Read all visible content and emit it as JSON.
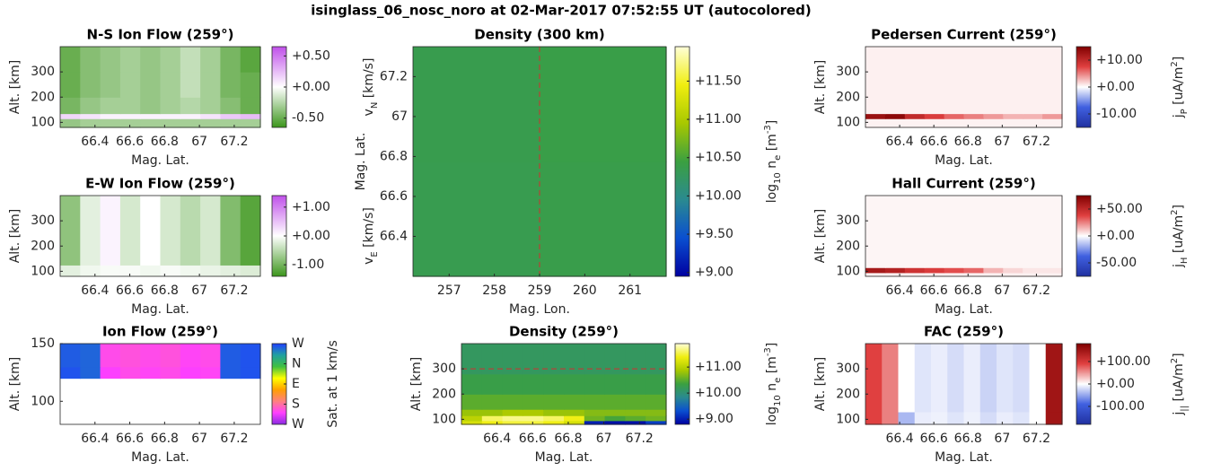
{
  "figure_title": "isinglass_06_nosc_noro at 02-Mar-2017 07:52:55 UT (autocolored)",
  "chart_data": [
    {
      "type": "heatmap",
      "title": "N-S Ion Flow (259°)",
      "xlabel": "Mag. Lat.",
      "ylabel": "Alt. [km]",
      "xlim": [
        66.2,
        67.35
      ],
      "ylim": [
        80,
        400
      ],
      "xticks": [
        66.4,
        66.6,
        66.8,
        67,
        67.2
      ],
      "yticks": [
        100,
        200,
        300
      ],
      "yedges": [
        80,
        115,
        135,
        200,
        300,
        400
      ],
      "z": [
        [
          -0.35,
          -0.3,
          -0.3,
          -0.3,
          -0.3,
          -0.3,
          -0.3,
          -0.3,
          -0.3,
          -0.3
        ],
        [
          0.15,
          0.1,
          0.05,
          0.05,
          0.05,
          0.05,
          0.05,
          0.1,
          0.2,
          0.25
        ],
        [
          -0.45,
          -0.35,
          -0.3,
          -0.3,
          -0.35,
          -0.3,
          -0.25,
          -0.3,
          -0.4,
          -0.5
        ],
        [
          -0.5,
          -0.4,
          -0.35,
          -0.3,
          -0.35,
          -0.3,
          -0.2,
          -0.3,
          -0.45,
          -0.5
        ],
        [
          -0.5,
          -0.4,
          -0.35,
          -0.3,
          -0.35,
          -0.3,
          -0.2,
          -0.3,
          -0.45,
          -0.55
        ]
      ],
      "clim": [
        -0.65,
        0.65
      ],
      "colormap": [
        "#3c961c",
        "#ffffff",
        "#c050ea"
      ],
      "cticks": [
        {
          "value": 0.5,
          "label": "+0.50"
        },
        {
          "value": 0,
          "label": "+0.00"
        },
        {
          "value": -0.5,
          "label": "-0.50"
        }
      ],
      "colorbar_label": [
        {
          "text": "v"
        },
        {
          "text": "N",
          "shift": "sub"
        },
        {
          "text": " [km/s]"
        }
      ]
    },
    {
      "type": "heatmap",
      "title": "E-W Ion Flow (259°)",
      "xlabel": "Mag. Lat.",
      "ylabel": "Alt. [km]",
      "xlim": [
        66.2,
        67.35
      ],
      "ylim": [
        80,
        400
      ],
      "xticks": [
        66.4,
        66.6,
        66.8,
        67,
        67.2
      ],
      "yticks": [
        100,
        200,
        300
      ],
      "yedges": [
        80,
        125,
        400
      ],
      "z": [
        [
          -0.2,
          -0.1,
          -0.05,
          -0.05,
          -0.1,
          -0.05,
          -0.1,
          -0.15,
          -0.2,
          -0.25
        ],
        [
          -0.8,
          -0.2,
          0.1,
          -0.3,
          0.0,
          -0.3,
          -0.5,
          -0.3,
          -0.9,
          -1.2
        ]
      ],
      "clim": [
        -1.4,
        1.4
      ],
      "colormap": [
        "#3c961c",
        "#ffffff",
        "#c050ea"
      ],
      "cticks": [
        {
          "value": 1,
          "label": "+1.00"
        },
        {
          "value": 0,
          "label": "+0.00"
        },
        {
          "value": -1,
          "label": "-1.00"
        }
      ],
      "colorbar_label": [
        {
          "text": "v"
        },
        {
          "text": "E",
          "shift": "sub"
        },
        {
          "text": " [km/s]"
        }
      ]
    },
    {
      "type": "heatmap",
      "title": "Ion Flow (259°)",
      "xlabel": "Mag. Lat.",
      "ylabel": "Alt. [km]",
      "xlim": [
        66.2,
        67.35
      ],
      "ylim": [
        80,
        150
      ],
      "xticks": [
        66.4,
        66.6,
        66.8,
        67,
        67.2
      ],
      "yticks": [
        100,
        150
      ],
      "yedges": [
        80,
        110,
        120,
        130,
        150
      ],
      "z": [
        [
          null,
          null,
          null,
          null,
          null,
          null,
          null,
          null,
          null,
          null
        ],
        [
          null,
          null,
          null,
          null,
          null,
          null,
          null,
          null,
          null,
          null
        ],
        [
          350,
          340,
          50,
          60,
          55,
          60,
          50,
          55,
          345,
          350
        ],
        [
          345,
          340,
          60,
          65,
          60,
          65,
          55,
          60,
          345,
          350
        ]
      ],
      "clim": [
        0,
        360
      ],
      "colormap": [
        "#8a2be2",
        "#ff40ff",
        "#ff8080",
        "#ffa000",
        "#ffff00",
        "#40c040",
        "#20a0a0",
        "#2040ff"
      ],
      "cticks": [
        {
          "value": 0,
          "label": "W"
        },
        {
          "value": 90,
          "label": "S"
        },
        {
          "value": 180,
          "label": "E"
        },
        {
          "value": 270,
          "label": "N"
        },
        {
          "value": 360,
          "label": "W"
        }
      ],
      "colorbar_label": [
        {
          "text": "Sat. at 1 km/s"
        }
      ]
    },
    {
      "type": "heatmap",
      "title": "Density (300 km)",
      "xlabel": "Mag. Lon.",
      "ylabel": "Mag. Lat.",
      "xlim": [
        256.2,
        261.8
      ],
      "ylim": [
        66.2,
        67.35
      ],
      "xticks": [
        257,
        258,
        259,
        260,
        261
      ],
      "yticks": [
        66.4,
        66.6,
        66.8,
        67,
        67.2
      ],
      "z": [
        [
          10.35,
          10.38
        ],
        [
          10.36,
          10.4
        ]
      ],
      "vline": 259,
      "clim": [
        8.95,
        11.95
      ],
      "colormap": [
        "#0000a0",
        "#0a4fd0",
        "#2a8a90",
        "#3ba040",
        "#a8c800",
        "#f0ee10",
        "#ffffd8"
      ],
      "cticks": [
        {
          "value": 11.5,
          "label": "+11.50"
        },
        {
          "value": 11,
          "label": "+11.00"
        },
        {
          "value": 10.5,
          "label": "+10.50"
        },
        {
          "value": 10,
          "label": "+10.00"
        },
        {
          "value": 9.5,
          "label": "+9.50"
        },
        {
          "value": 9,
          "label": "+9.00"
        }
      ],
      "colorbar_label": [
        {
          "text": "log"
        },
        {
          "text": "10",
          "shift": "sub"
        },
        {
          "text": " n"
        },
        {
          "text": "e",
          "shift": "sub"
        },
        {
          "text": " [m"
        },
        {
          "text": "-3",
          "shift": "super"
        },
        {
          "text": "]"
        }
      ]
    },
    {
      "type": "heatmap",
      "title": "Density (259°)",
      "xlabel": "Mag. Lat.",
      "ylabel": "Alt. [km]",
      "xlim": [
        66.2,
        67.35
      ],
      "ylim": [
        80,
        400
      ],
      "xticks": [
        66.4,
        66.6,
        66.8,
        67,
        67.2
      ],
      "yticks": [
        100,
        200,
        300
      ],
      "yedges": [
        80,
        95,
        115,
        140,
        200,
        280,
        400
      ],
      "hline": 300,
      "z": [
        [
          11.2,
          11.4,
          11.5,
          11.5,
          11.4,
          11.2,
          9.0,
          8.9,
          8.9,
          9.2
        ],
        [
          11.0,
          11.6,
          11.7,
          11.7,
          11.6,
          11.4,
          10.6,
          10.4,
          10.5,
          10.6
        ],
        [
          10.8,
          10.8,
          10.9,
          10.9,
          10.8,
          10.8,
          10.7,
          10.7,
          10.7,
          10.7
        ],
        [
          10.5,
          10.5,
          10.5,
          10.5,
          10.5,
          10.5,
          10.5,
          10.5,
          10.5,
          10.5
        ],
        [
          10.3,
          10.3,
          10.3,
          10.3,
          10.3,
          10.3,
          10.3,
          10.3,
          10.3,
          10.3
        ],
        [
          10.15,
          10.15,
          10.15,
          10.15,
          10.15,
          10.15,
          10.15,
          10.15,
          10.15,
          10.15
        ]
      ],
      "clim": [
        8.8,
        11.9
      ],
      "colormap": [
        "#0000a0",
        "#0a4fd0",
        "#2a8a90",
        "#3ba040",
        "#a8c800",
        "#f0ee10",
        "#ffffd8"
      ],
      "cticks": [
        {
          "value": 11,
          "label": "+11.00"
        },
        {
          "value": 10,
          "label": "+10.00"
        },
        {
          "value": 9,
          "label": "+9.00"
        }
      ],
      "colorbar_label": [
        {
          "text": "log"
        },
        {
          "text": "10",
          "shift": "sub"
        },
        {
          "text": " n"
        },
        {
          "text": "e",
          "shift": "sub"
        },
        {
          "text": " [m"
        },
        {
          "text": "-3",
          "shift": "super"
        },
        {
          "text": "]"
        }
      ]
    },
    {
      "type": "heatmap",
      "title": "Pedersen Current (259°)",
      "xlabel": "Mag. Lat.",
      "ylabel": "Alt. [km]",
      "xlim": [
        66.2,
        67.35
      ],
      "ylim": [
        80,
        400
      ],
      "xticks": [
        66.4,
        66.6,
        66.8,
        67,
        67.2
      ],
      "yticks": [
        100,
        200,
        300
      ],
      "yedges": [
        80,
        115,
        135,
        400
      ],
      "z": [
        [
          0.5,
          0.5,
          0.5,
          0.5,
          0.5,
          0.5,
          0.5,
          0.5,
          0.5,
          0.5
        ],
        [
          13,
          14,
          10,
          8,
          6,
          5,
          4,
          3,
          3,
          4
        ],
        [
          0.6,
          0.6,
          0.6,
          0.6,
          0.6,
          0.6,
          0.6,
          0.6,
          0.6,
          0.6
        ]
      ],
      "clim": [
        -15,
        15
      ],
      "colormap": [
        "#2030a0",
        "#4060e0",
        "#ffffff",
        "#e04040",
        "#800000"
      ],
      "cticks": [
        {
          "value": 10,
          "label": "+10.00"
        },
        {
          "value": 0,
          "label": "+0.00"
        },
        {
          "value": -10,
          "label": "-10.00"
        }
      ],
      "colorbar_label": [
        {
          "text": "j"
        },
        {
          "text": "P",
          "shift": "sub"
        },
        {
          "text": " [uA/m"
        },
        {
          "text": "2",
          "shift": "super"
        },
        {
          "text": "]"
        }
      ]
    },
    {
      "type": "heatmap",
      "title": "Hall Current (259°)",
      "xlabel": "Mag. Lat.",
      "ylabel": "Alt. [km]",
      "xlim": [
        66.2,
        67.35
      ],
      "ylim": [
        80,
        400
      ],
      "xticks": [
        66.4,
        66.6,
        66.8,
        67,
        67.2
      ],
      "yticks": [
        100,
        200,
        300
      ],
      "yedges": [
        80,
        95,
        115,
        400
      ],
      "z": [
        [
          3,
          3,
          3,
          3,
          3,
          3,
          3,
          3,
          3,
          3
        ],
        [
          60,
          55,
          45,
          40,
          35,
          30,
          15,
          8,
          5,
          5
        ],
        [
          2,
          2,
          2,
          2,
          2,
          2,
          2,
          2,
          2,
          2
        ]
      ],
      "clim": [
        -75,
        75
      ],
      "colormap": [
        "#2030a0",
        "#4060e0",
        "#ffffff",
        "#e04040",
        "#800000"
      ],
      "cticks": [
        {
          "value": 50,
          "label": "+50.00"
        },
        {
          "value": 0,
          "label": "+0.00"
        },
        {
          "value": -50,
          "label": "-50.00"
        }
      ],
      "colorbar_label": [
        {
          "text": "j"
        },
        {
          "text": "H",
          "shift": "sub"
        },
        {
          "text": " [uA/m"
        },
        {
          "text": "2",
          "shift": "super"
        },
        {
          "text": "]"
        }
      ]
    },
    {
      "type": "heatmap",
      "title": "FAC (259°)",
      "xlabel": "Mag. Lat.",
      "ylabel": "Alt. [km]",
      "xlim": [
        66.2,
        67.35
      ],
      "ylim": [
        80,
        400
      ],
      "xticks": [
        66.4,
        66.6,
        66.8,
        67,
        67.2
      ],
      "yticks": [
        100,
        200,
        300
      ],
      "yedges": [
        80,
        130,
        400
      ],
      "z": [
        [
          90,
          60,
          -40,
          -10,
          -8,
          -15,
          -8,
          -20,
          -10,
          -15,
          0,
          150
        ],
        [
          90,
          60,
          0,
          -15,
          -10,
          -20,
          -10,
          -25,
          -15,
          -20,
          0,
          150
        ]
      ],
      "clim": [
        -180,
        180
      ],
      "colormap": [
        "#2030a0",
        "#4060e0",
        "#ffffff",
        "#e04040",
        "#800000"
      ],
      "cticks": [
        {
          "value": 100,
          "label": "+100.00"
        },
        {
          "value": 0,
          "label": "+0.00"
        },
        {
          "value": -100,
          "label": "-100.00"
        }
      ],
      "colorbar_label": [
        {
          "text": "j"
        },
        {
          "text": "||",
          "shift": "sub"
        },
        {
          "text": " [uA/m"
        },
        {
          "text": "2",
          "shift": "super"
        },
        {
          "text": "]"
        }
      ]
    }
  ]
}
